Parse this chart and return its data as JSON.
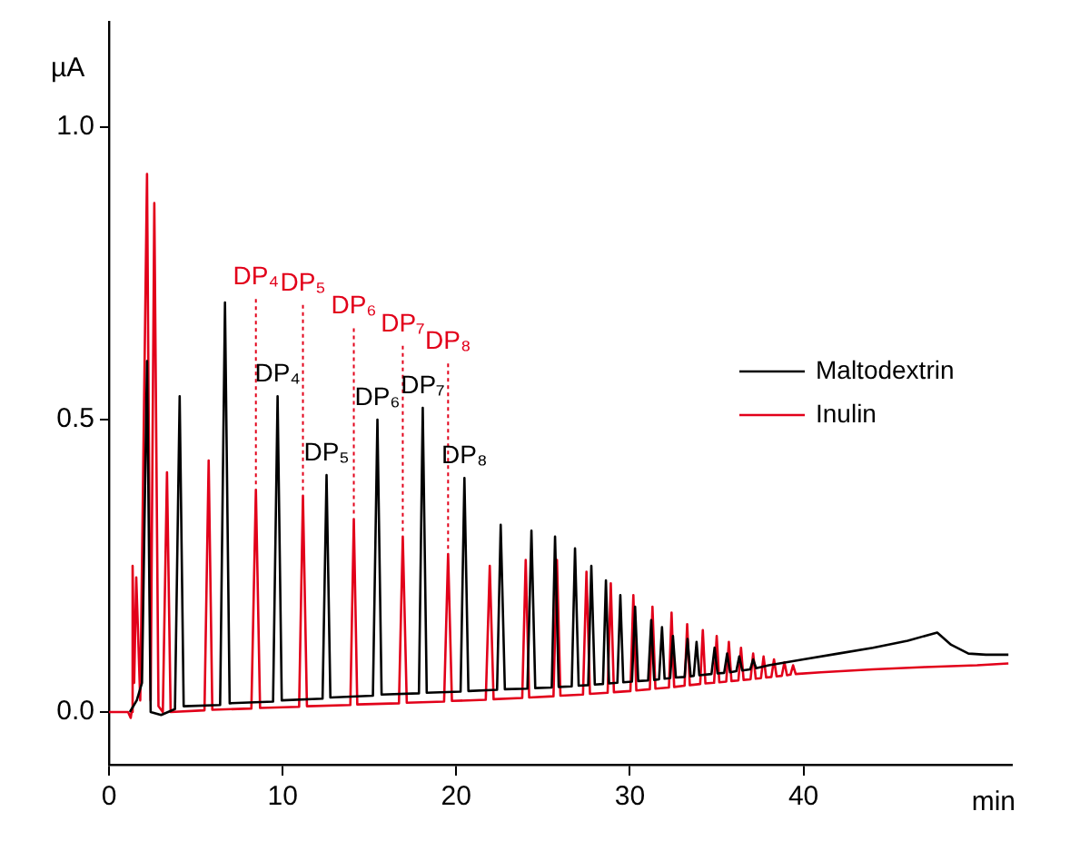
{
  "chart_data": {
    "type": "line",
    "xlabel": "min",
    "ylabel": "µA",
    "xlim": [
      0,
      52
    ],
    "xticks": [
      0,
      10,
      20,
      30,
      40
    ],
    "ylim": [
      -0.09,
      1.18
    ],
    "yticks": [
      {
        "value": 0,
        "label": "0.0"
      },
      {
        "value": 0.5,
        "label": "0.5"
      },
      {
        "value": 1,
        "label": "1.0"
      }
    ],
    "grid": false,
    "legend": "right",
    "marker": "none",
    "line_style": "solid",
    "series": [
      {
        "name": "Maltodextrin",
        "color": "#000000",
        "x": [
          1.2,
          1.6,
          1.9,
          2.19,
          2.4,
          3.0,
          3.8,
          4.07,
          4.3,
          6.4,
          6.68,
          6.95,
          9.45,
          9.71,
          9.95,
          12.3,
          12.53,
          12.75,
          15.2,
          15.46,
          15.7,
          17.85,
          18.07,
          18.3,
          20.25,
          20.47,
          20.7,
          22.35,
          22.56,
          22.8,
          24.1,
          24.33,
          24.55,
          25.5,
          25.69,
          25.9,
          26.65,
          26.84,
          27.05,
          27.6,
          27.78,
          27.98,
          28.45,
          28.62,
          28.8,
          29.28,
          29.45,
          29.62,
          30.12,
          30.3,
          30.48,
          31.05,
          31.23,
          31.4,
          31.68,
          31.85,
          32.0,
          32.32,
          32.48,
          32.65,
          33.15,
          33.32,
          33.5,
          33.68,
          33.84,
          34.0,
          34.7,
          34.88,
          35.05,
          35.43,
          35.6,
          35.77,
          36.13,
          36.3,
          36.47,
          36.93,
          37.1,
          37.27,
          38,
          40,
          42,
          44,
          46,
          47.7,
          48.5,
          49.5,
          50.5,
          51.8
        ],
        "values": [
          0,
          0.02,
          0.05,
          0.6,
          0.0,
          -0.005,
          0.005,
          0.54,
          0.01,
          0.012,
          0.7,
          0.015,
          0.018,
          0.54,
          0.02,
          0.023,
          0.405,
          0.025,
          0.028,
          0.5,
          0.03,
          0.032,
          0.52,
          0.033,
          0.035,
          0.4,
          0.036,
          0.038,
          0.32,
          0.039,
          0.04,
          0.31,
          0.041,
          0.042,
          0.3,
          0.043,
          0.044,
          0.28,
          0.045,
          0.046,
          0.25,
          0.047,
          0.048,
          0.225,
          0.049,
          0.05,
          0.2,
          0.051,
          0.052,
          0.18,
          0.053,
          0.054,
          0.157,
          0.055,
          0.056,
          0.145,
          0.057,
          0.058,
          0.13,
          0.059,
          0.06,
          0.125,
          0.061,
          0.062,
          0.12,
          0.063,
          0.065,
          0.11,
          0.066,
          0.067,
          0.1,
          0.068,
          0.07,
          0.095,
          0.071,
          0.073,
          0.09,
          0.075,
          0.08,
          0.09,
          0.1,
          0.11,
          0.122,
          0.136,
          0.115,
          0.1,
          0.098,
          0.098
        ]
      },
      {
        "name": "Inulin",
        "color": "#e2001a",
        "x": [
          0,
          1.1,
          1.25,
          1.3,
          1.36,
          1.45,
          1.57,
          1.8,
          2.19,
          2.4,
          2.61,
          2.85,
          3.1,
          3.34,
          3.55,
          5.5,
          5.74,
          5.95,
          8.2,
          8.46,
          8.7,
          10.95,
          11.17,
          11.4,
          13.9,
          14.1,
          14.3,
          16.7,
          16.92,
          17.15,
          19.3,
          19.53,
          19.75,
          21.7,
          21.93,
          22.15,
          23.8,
          24.0,
          24.2,
          25.6,
          25.8,
          26.0,
          27.3,
          27.5,
          27.7,
          28.72,
          28.9,
          29.08,
          30.03,
          30.2,
          30.37,
          31.15,
          31.3,
          31.47,
          32.25,
          32.4,
          32.55,
          33.15,
          33.3,
          33.45,
          34.05,
          34.2,
          34.35,
          34.85,
          35.0,
          35.15,
          35.55,
          35.7,
          35.85,
          36.25,
          36.4,
          36.55,
          36.95,
          37.1,
          37.25,
          37.55,
          37.7,
          37.85,
          38.15,
          38.3,
          38.45,
          38.75,
          38.9,
          39.05,
          39.25,
          39.4,
          39.55,
          41,
          44,
          47,
          50,
          51.8
        ],
        "values": [
          0,
          0,
          -0.01,
          0.0,
          0.25,
          0.05,
          0.23,
          0.02,
          0.92,
          0.02,
          0.87,
          0.01,
          0.0,
          0.41,
          0.0,
          0.003,
          0.43,
          0.004,
          0.006,
          0.38,
          0.007,
          0.009,
          0.37,
          0.01,
          0.012,
          0.33,
          0.013,
          0.015,
          0.3,
          0.016,
          0.018,
          0.27,
          0.019,
          0.021,
          0.25,
          0.022,
          0.024,
          0.26,
          0.025,
          0.027,
          0.26,
          0.028,
          0.03,
          0.24,
          0.031,
          0.033,
          0.22,
          0.034,
          0.036,
          0.2,
          0.037,
          0.039,
          0.18,
          0.04,
          0.042,
          0.17,
          0.043,
          0.045,
          0.15,
          0.046,
          0.048,
          0.14,
          0.049,
          0.05,
          0.13,
          0.051,
          0.052,
          0.12,
          0.053,
          0.054,
          0.11,
          0.055,
          0.056,
          0.1,
          0.057,
          0.058,
          0.095,
          0.059,
          0.06,
          0.09,
          0.061,
          0.062,
          0.085,
          0.063,
          0.064,
          0.08,
          0.065,
          0.068,
          0.073,
          0.077,
          0.08,
          0.083
        ]
      }
    ],
    "annotations": [
      {
        "text": "DP₄",
        "x": 8.46,
        "y": 0.38
      },
      {
        "text": "DP₅",
        "x": 11.17,
        "y": 0.37
      },
      {
        "text": "DP₆",
        "x": 14.1,
        "y": 0.33
      },
      {
        "text": "DP₇",
        "x": 16.92,
        "y": 0.3
      },
      {
        "text": "DP₈",
        "x": 19.53,
        "y": 0.27
      },
      {
        "text": "DP₄",
        "x": 9.71,
        "y": 0.54
      },
      {
        "text": "DP₅",
        "x": 12.53,
        "y": 0.405
      },
      {
        "text": "DP₆",
        "x": 15.46,
        "y": 0.5
      },
      {
        "text": "DP₇",
        "x": 18.07,
        "y": 0.52
      },
      {
        "text": "DP₈",
        "x": 20.47,
        "y": 0.4
      }
    ]
  }
}
